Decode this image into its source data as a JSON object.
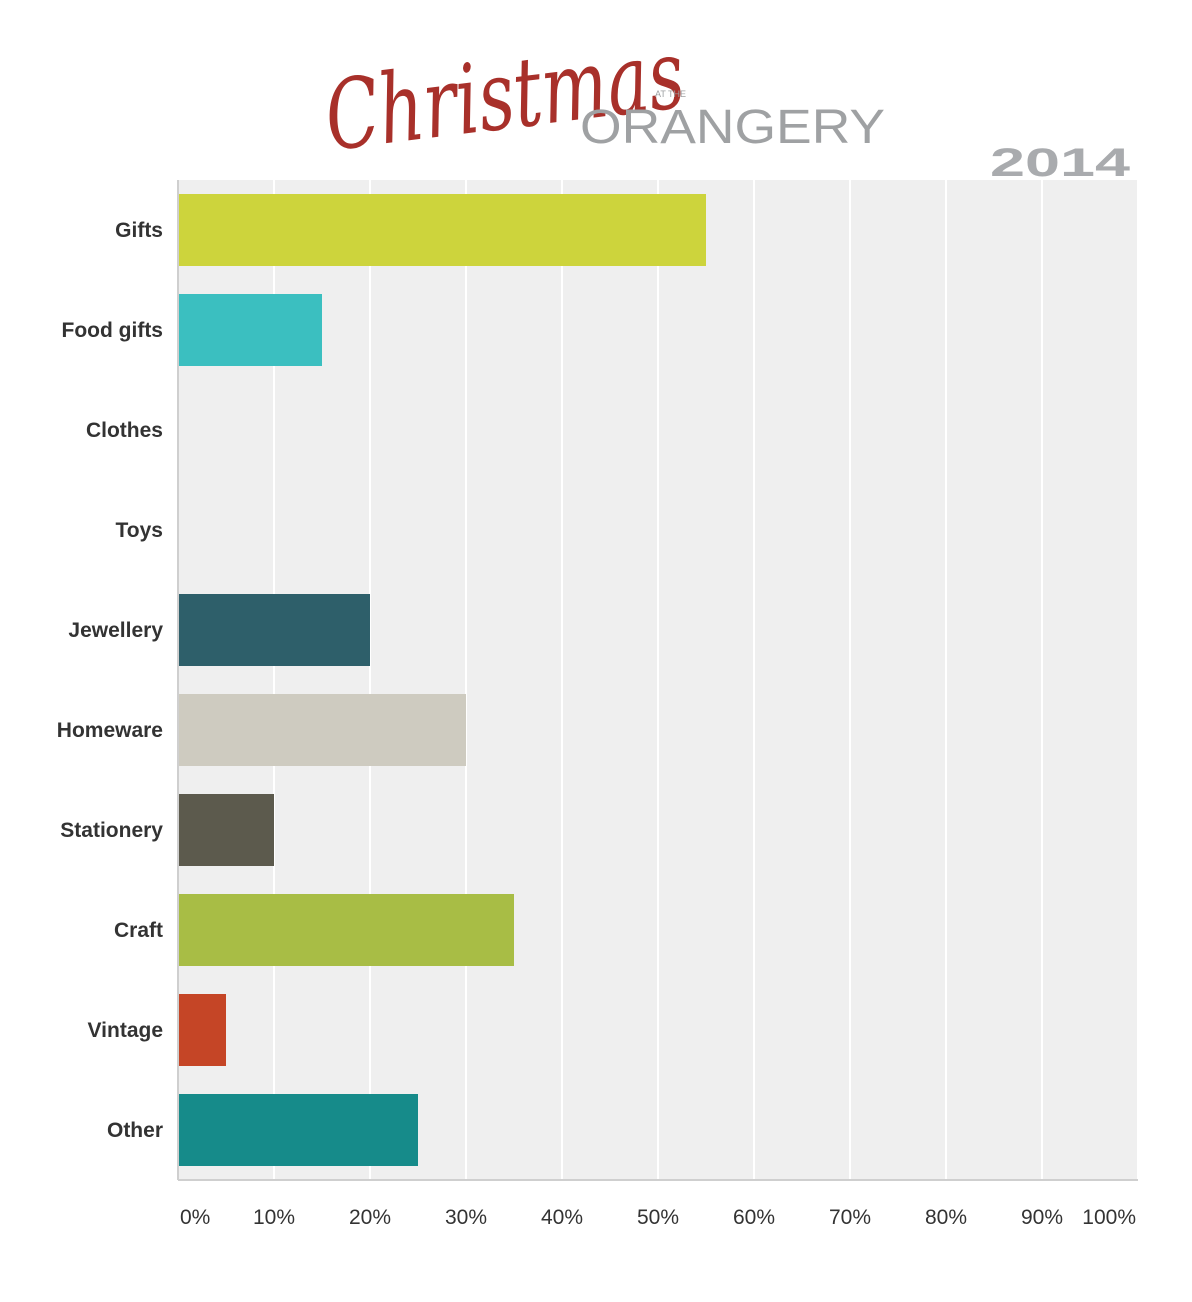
{
  "logo": {
    "script_text": "Christmas",
    "small_text": "AT THE",
    "word_text": "ORANGERY",
    "year": "2014",
    "script_color": "#a8302a",
    "word_color": "#9fa1a3"
  },
  "chart_data": {
    "type": "bar",
    "orientation": "horizontal",
    "categories": [
      "Gifts",
      "Food gifts",
      "Clothes",
      "Toys",
      "Jewellery",
      "Homeware",
      "Stationery",
      "Craft",
      "Vintage",
      "Other"
    ],
    "values": [
      55,
      15,
      0,
      0,
      20,
      30,
      10,
      35,
      5,
      25
    ],
    "colors": [
      "#cdd43c",
      "#3bbfc0",
      "#cccccc",
      "#cccccc",
      "#2e5f6a",
      "#cecbc0",
      "#5c5a4d",
      "#a8bd45",
      "#c54526",
      "#168b8a"
    ],
    "x_ticks": [
      "0%",
      "10%",
      "20%",
      "30%",
      "40%",
      "50%",
      "60%",
      "70%",
      "80%",
      "90%",
      "100%"
    ],
    "xlim": [
      0,
      100
    ],
    "unit": "%",
    "grid": true,
    "background": "#efefef"
  }
}
